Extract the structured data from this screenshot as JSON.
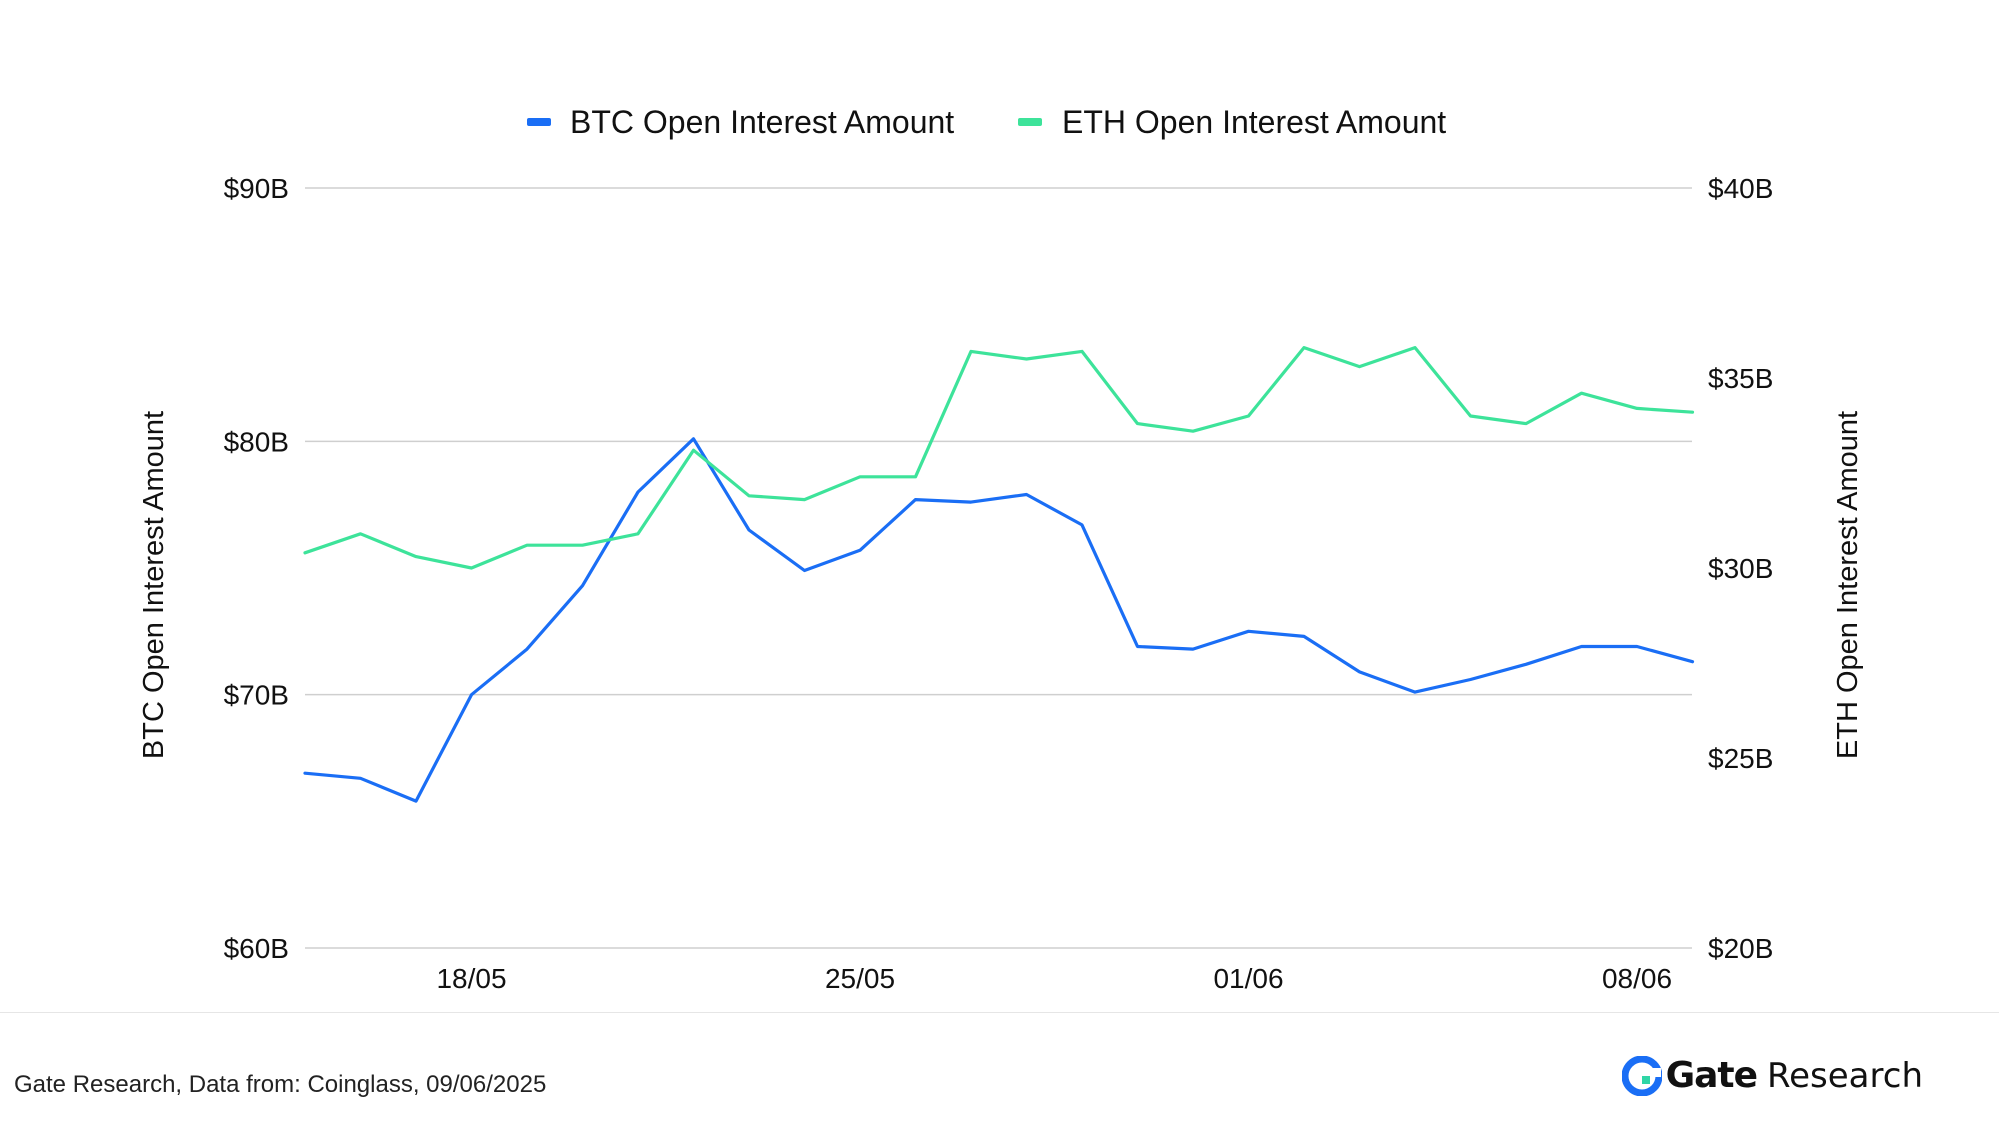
{
  "chart_data": {
    "type": "line",
    "x": [
      "15/05",
      "16/05",
      "17/05",
      "18/05",
      "19/05",
      "20/05",
      "21/05",
      "22/05",
      "23/05",
      "24/05",
      "25/05",
      "26/05",
      "27/05",
      "28/05",
      "29/05",
      "30/05",
      "31/05",
      "01/06",
      "02/06",
      "03/06",
      "04/06",
      "05/06",
      "06/06",
      "07/06",
      "08/06",
      "09/06"
    ],
    "xticks": [
      "18/05",
      "25/05",
      "01/06",
      "08/06"
    ],
    "series": [
      {
        "name": "BTC Open Interest Amount",
        "axis": "left",
        "color": "#1a6ef5",
        "values": [
          66.9,
          66.7,
          65.8,
          70.0,
          71.8,
          74.3,
          78.0,
          80.1,
          76.5,
          74.9,
          75.7,
          77.7,
          77.6,
          77.9,
          76.7,
          71.9,
          71.8,
          72.5,
          72.3,
          70.9,
          70.1,
          70.6,
          71.2,
          71.9,
          71.9,
          71.3
        ]
      },
      {
        "name": "ETH Open Interest Amount",
        "axis": "right",
        "color": "#3de39a",
        "values": [
          30.4,
          30.9,
          30.3,
          30.0,
          30.6,
          30.6,
          30.9,
          33.1,
          31.9,
          31.8,
          32.4,
          32.4,
          35.7,
          35.5,
          35.7,
          33.8,
          33.6,
          34.0,
          35.8,
          35.3,
          35.8,
          34.0,
          33.8,
          34.6,
          34.2,
          34.1
        ]
      }
    ],
    "ylabel": "BTC Open Interest Amount",
    "ylabel_right": "ETH Open Interest Amount",
    "ylim": [
      60,
      90
    ],
    "ylim_right": [
      20,
      40
    ],
    "yticks": [
      "$60B",
      "$70B",
      "$80B",
      "$90B"
    ],
    "yticks_right": [
      "$20B",
      "$25B",
      "$30B",
      "$35B",
      "$40B"
    ],
    "grid": true,
    "legend": "top-center"
  },
  "footer": {
    "source": "Gate Research, Data from: Coinglass, 09/06/2025",
    "brand_bold": "Gate",
    "brand_light": "Research"
  }
}
